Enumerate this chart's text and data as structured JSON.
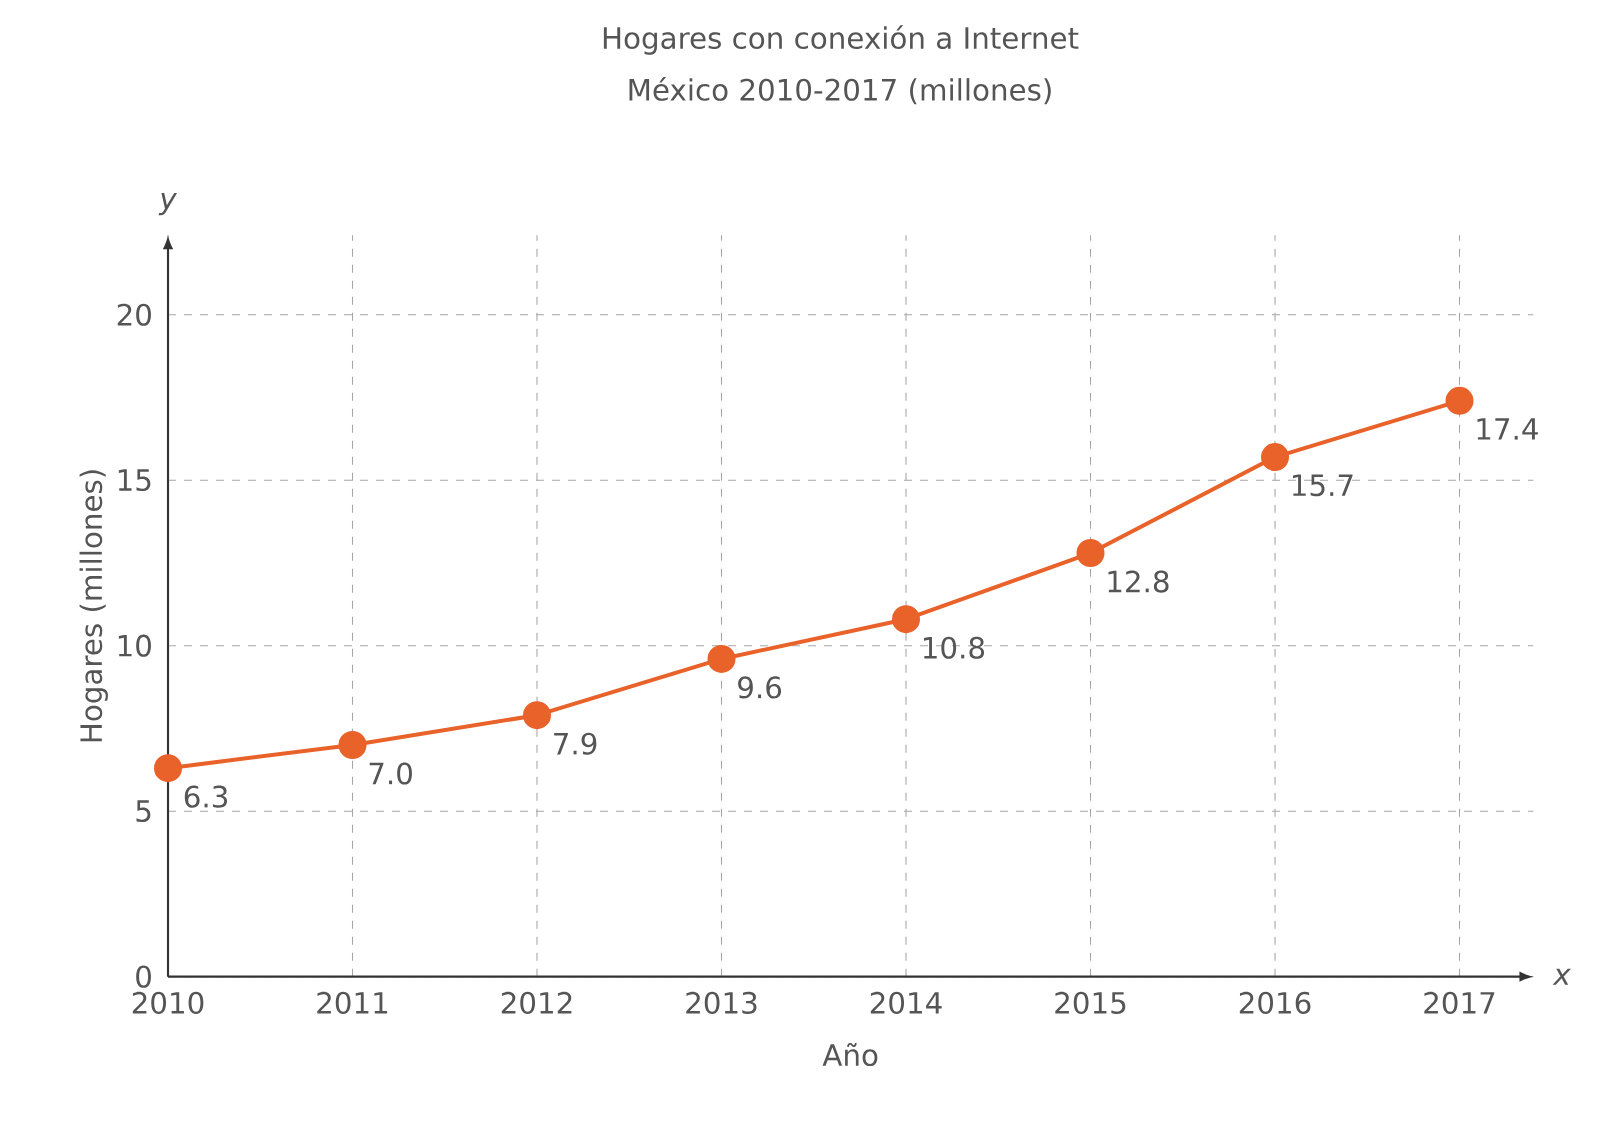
{
  "chart_data": {
    "type": "line",
    "title": "Hogares con conexión a Internet",
    "subtitle": "México 2010-2017 (millones)",
    "xlabel": "Año",
    "ylabel": "Hogares (millones)",
    "annotations": [
      "y",
      "x"
    ],
    "x": [
      2010,
      2011,
      2012,
      2013,
      2014,
      2015,
      2016,
      2017
    ],
    "series": [
      {
        "color": "#e8622a",
        "values": [
          6.3,
          7.0,
          7.9,
          9.6,
          10.8,
          12.8,
          15.7,
          17.4
        ],
        "value_labels": [
          "6.3",
          "7.0",
          "7.9",
          "9.6",
          "10.8",
          "12.8",
          "15.7",
          "17.4"
        ]
      }
    ],
    "xlim": [
      2010,
      2017.4
    ],
    "ylim": [
      0,
      22.4
    ],
    "xticks": [
      2010,
      2011,
      2012,
      2013,
      2014,
      2015,
      2016,
      2017
    ],
    "yticks": [
      0,
      5,
      10,
      15,
      20
    ],
    "grid": true,
    "marker": "circle",
    "line_style": "solid"
  }
}
